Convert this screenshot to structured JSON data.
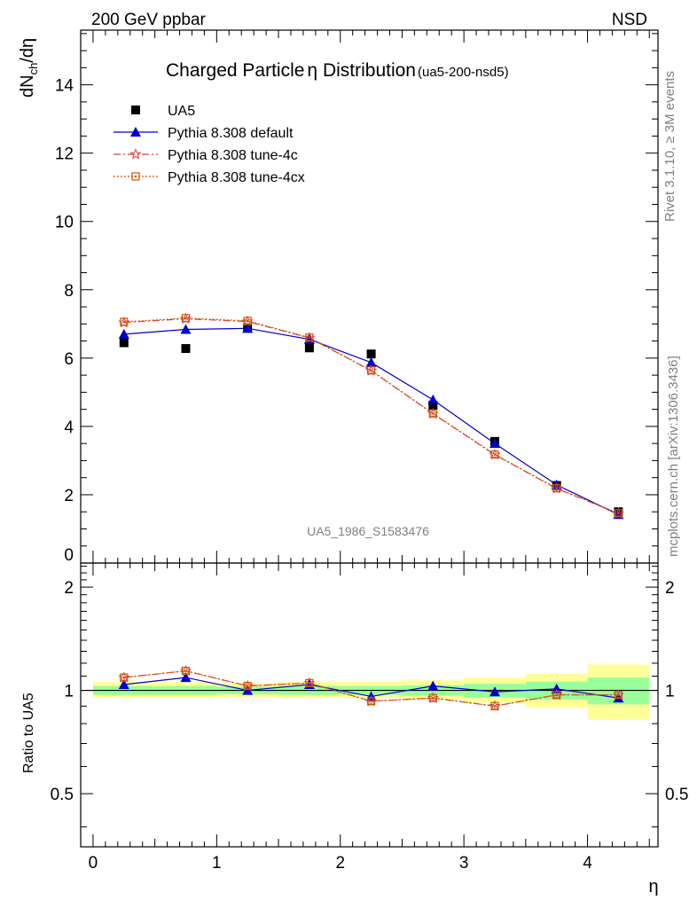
{
  "header": {
    "left": "200 GeV ppbar",
    "right": "NSD",
    "title": "Charged Particle",
    "title_symbol": "η",
    "title_rest": " Distribution",
    "title_ref": "(ua5-200-nsd5)",
    "watermark": "UA5_1986_S1583476",
    "side_rivet": "Rivet 3.1.10, ≥ 3M events",
    "side_mcplots": "mcplots.cern.ch [arXiv:1306.3436]"
  },
  "colors": {
    "data": "#000000",
    "default": "#0000cc",
    "tune4c": "#e04040",
    "tune4cx": "#cc5500",
    "band_green": "#99ff99",
    "band_yellow": "#ffff99"
  },
  "chart_data": [
    {
      "type": "scatter",
      "xlabel": "η",
      "ylabel": "dN_ch/dη",
      "xlim": [
        -0.1,
        4.57
      ],
      "ylim": [
        0,
        15.6
      ],
      "yticks": [
        0,
        2,
        4,
        6,
        8,
        10,
        12,
        14
      ],
      "x": [
        0.25,
        0.75,
        1.25,
        1.75,
        2.25,
        2.75,
        3.25,
        3.75,
        4.25
      ],
      "legend_position": "top-left",
      "series": [
        {
          "name": "UA5",
          "marker": "square",
          "values": [
            6.45,
            6.28,
            6.88,
            6.3,
            6.12,
            4.62,
            3.56,
            2.27,
            1.5
          ]
        },
        {
          "name": "Pythia 8.308 default",
          "marker": "triangle",
          "values": [
            6.7,
            6.84,
            6.87,
            6.55,
            5.87,
            4.78,
            3.5,
            2.29,
            1.42
          ]
        },
        {
          "name": "Pythia 8.308 tune-4c",
          "marker": "star",
          "values": [
            7.04,
            7.15,
            7.07,
            6.59,
            5.63,
            4.37,
            3.17,
            2.18,
            1.45
          ]
        },
        {
          "name": "Pythia 8.308 tune-4cx",
          "marker": "open-square",
          "values": [
            7.06,
            7.17,
            7.09,
            6.6,
            5.64,
            4.38,
            3.18,
            2.19,
            1.46
          ]
        }
      ]
    },
    {
      "type": "line",
      "xlabel": "η",
      "ylabel": "Ratio to UA5",
      "xlim": [
        -0.1,
        4.57
      ],
      "ylim": [
        0.35,
        2.35
      ],
      "ylog": true,
      "yticks": [
        0.5,
        1,
        2
      ],
      "x": [
        0.25,
        0.75,
        1.25,
        1.75,
        2.25,
        2.75,
        3.25,
        3.75,
        4.25
      ],
      "bands": {
        "bin_edges": [
          0.0,
          0.5,
          1.0,
          1.5,
          2.0,
          2.5,
          3.0,
          3.5,
          4.0,
          4.5
        ],
        "green": [
          [
            0.97,
            1.03
          ],
          [
            0.97,
            1.03
          ],
          [
            0.975,
            1.025
          ],
          [
            0.97,
            1.03
          ],
          [
            0.97,
            1.03
          ],
          [
            0.965,
            1.035
          ],
          [
            0.955,
            1.045
          ],
          [
            0.94,
            1.06
          ],
          [
            0.91,
            1.09
          ]
        ],
        "yellow": [
          [
            0.95,
            1.06
          ],
          [
            0.95,
            1.06
          ],
          [
            0.955,
            1.05
          ],
          [
            0.95,
            1.06
          ],
          [
            0.95,
            1.06
          ],
          [
            0.94,
            1.07
          ],
          [
            0.92,
            1.09
          ],
          [
            0.89,
            1.12
          ],
          [
            0.82,
            1.19
          ]
        ]
      },
      "series": [
        {
          "name": "Pythia 8.308 default",
          "values": [
            1.04,
            1.09,
            1.0,
            1.04,
            0.96,
            1.03,
            0.99,
            1.01,
            0.95
          ]
        },
        {
          "name": "Pythia 8.308 tune-4c",
          "values": [
            1.09,
            1.14,
            1.03,
            1.05,
            0.93,
            0.95,
            0.9,
            0.97,
            0.97
          ]
        },
        {
          "name": "Pythia 8.308 tune-4cx",
          "values": [
            1.09,
            1.14,
            1.03,
            1.05,
            0.93,
            0.95,
            0.9,
            0.97,
            0.97
          ]
        }
      ]
    }
  ]
}
